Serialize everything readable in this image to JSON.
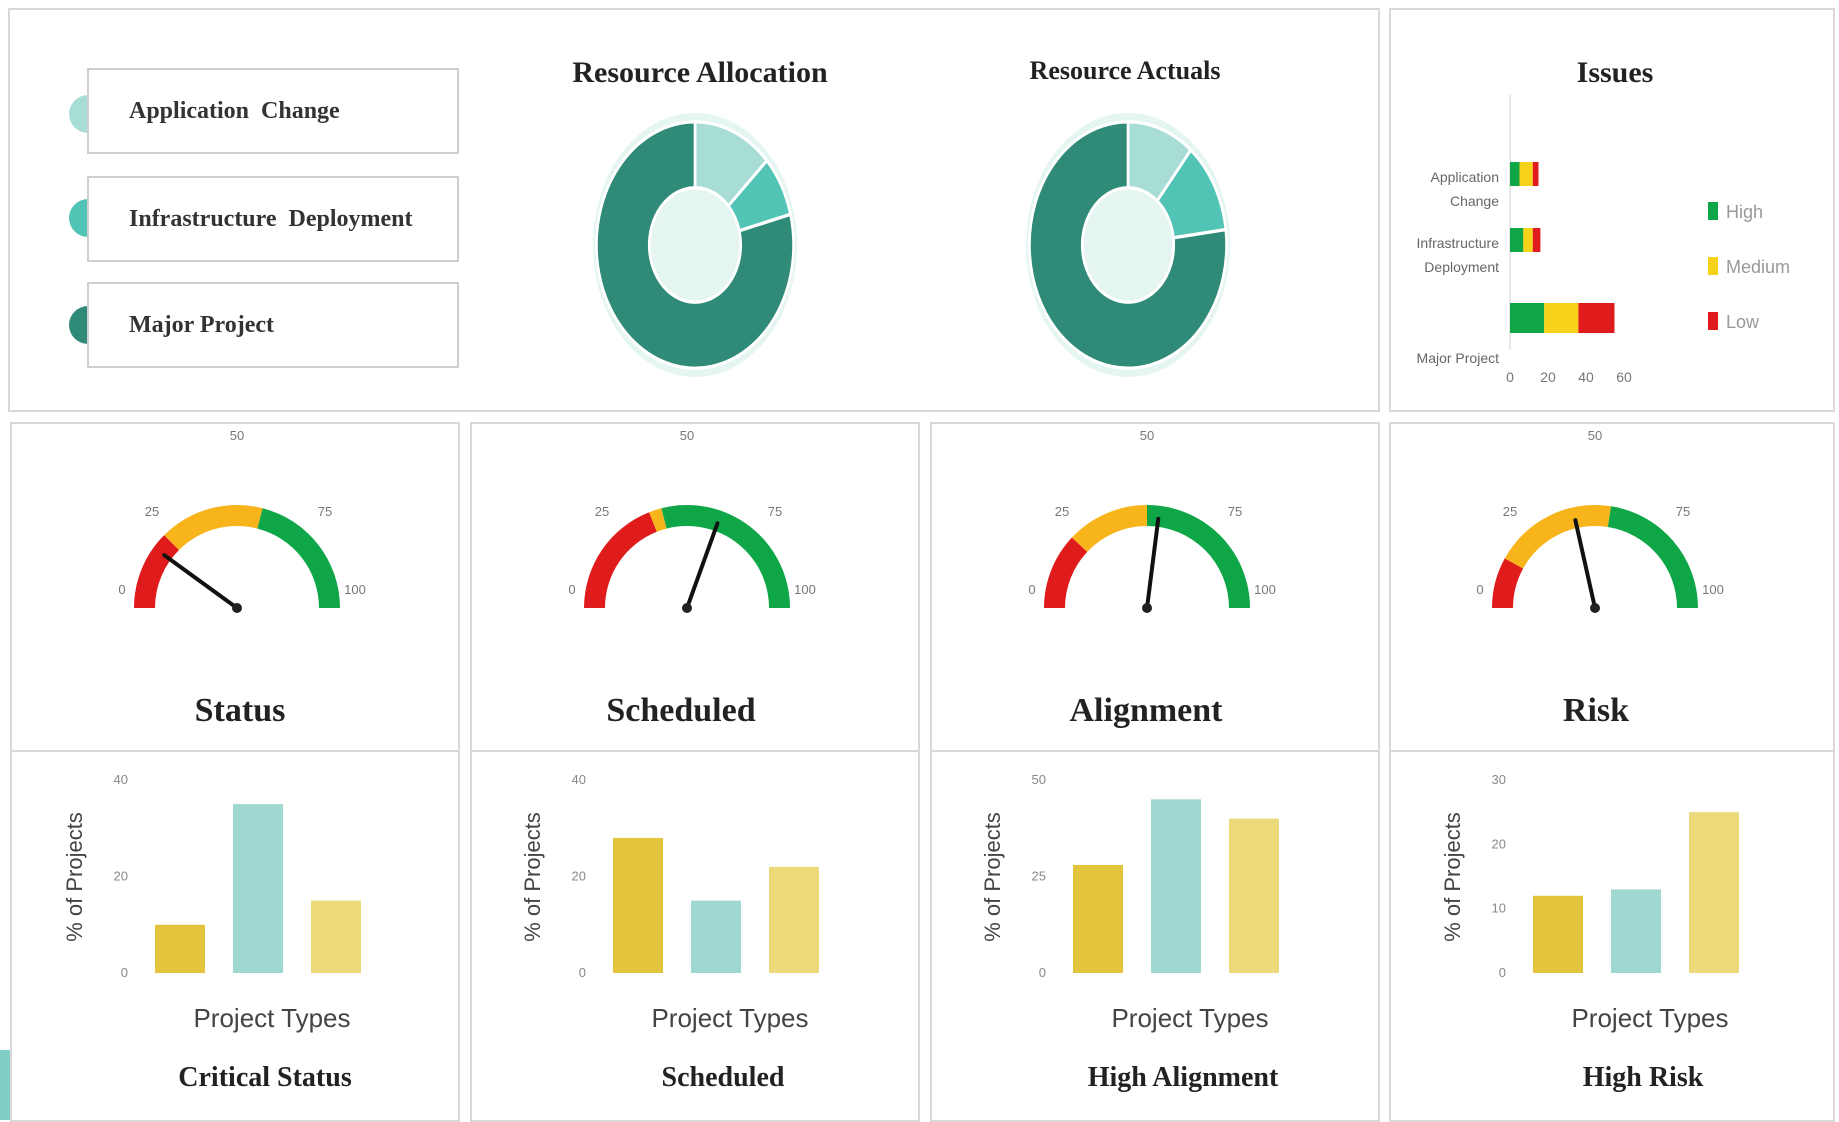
{
  "colors": {
    "light_teal": "#a8ddd6",
    "mid_teal": "#52c4b5",
    "dark_teal": "#2f8a78",
    "red": "#e01b1b",
    "orange": "#f7b51b",
    "green": "#0fa648",
    "bar_gold": "#e2c53c",
    "bar_teal": "#9fd8d1",
    "bar_pale_gold": "#ebd97a"
  },
  "legend": {
    "items": [
      {
        "label": "Application  Change",
        "color": "#a8ddd6"
      },
      {
        "label": "Infrastructure  Deployment",
        "color": "#52c4b5"
      },
      {
        "label": "Major Project",
        "color": "#2f8a78"
      }
    ]
  },
  "donuts": [
    {
      "title": "Resource Allocation",
      "slices": [
        {
          "name": "Application  Change",
          "value": 13
        },
        {
          "name": "Infrastructure  Deployment",
          "value": 8
        },
        {
          "name": "Major Project",
          "value": 79
        }
      ]
    },
    {
      "title": "Resource Actuals",
      "slices": [
        {
          "name": "Application  Change",
          "value": 11
        },
        {
          "name": "Infrastructure  Deployment",
          "value": 12
        },
        {
          "name": "Major Project",
          "value": 77
        }
      ]
    }
  ],
  "issues": {
    "title": "Issues",
    "categories": [
      "Application Change",
      "Infrastructure Deployment",
      "Major Project"
    ],
    "series": [
      {
        "name": "High",
        "values": [
          5,
          7,
          18
        ],
        "color": "#0fa648"
      },
      {
        "name": "Medium",
        "values": [
          7,
          5,
          18
        ],
        "color": "#f7d21b"
      },
      {
        "name": "Low",
        "values": [
          3,
          4,
          19
        ],
        "color": "#e01b1b"
      }
    ],
    "xticks": [
      "0",
      "20",
      "40",
      "60"
    ],
    "xlim": [
      0,
      60
    ]
  },
  "gauges": [
    {
      "title": "Status",
      "value": 20
    },
    {
      "title": "Scheduled",
      "value": 61
    },
    {
      "title": "Alignment",
      "value": 54
    },
    {
      "title": "Risk",
      "value": 43
    }
  ],
  "gauge_ticks": [
    "0",
    "25",
    "50",
    "75",
    "100"
  ],
  "bar_charts_common": {
    "xlabel": "Project Types",
    "ylabel": "% of Projects"
  },
  "chart_data": [
    {
      "type": "pie",
      "title": "Resource Allocation",
      "categories": [
        "Application  Change",
        "Infrastructure  Deployment",
        "Major Project"
      ],
      "values": [
        13,
        8,
        79
      ]
    },
    {
      "type": "pie",
      "title": "Resource Actuals",
      "categories": [
        "Application  Change",
        "Infrastructure  Deployment",
        "Major Project"
      ],
      "values": [
        11,
        12,
        77
      ]
    },
    {
      "type": "bar",
      "title": "Issues",
      "orientation": "horizontal",
      "stacked": true,
      "categories": [
        "Application Change",
        "Infrastructure Deployment",
        "Major Project"
      ],
      "series": [
        {
          "name": "High",
          "values": [
            5,
            7,
            18
          ]
        },
        {
          "name": "Medium",
          "values": [
            7,
            5,
            18
          ]
        },
        {
          "name": "Low",
          "values": [
            3,
            4,
            19
          ]
        }
      ],
      "xlim": [
        0,
        60
      ],
      "legend": "right"
    },
    {
      "type": "bar",
      "title": "Critical Status",
      "xlabel": "Project Types",
      "ylabel": "% of Projects",
      "values": [
        10,
        35,
        15
      ],
      "ylim": [
        0,
        40
      ],
      "yticks": [
        "0",
        "20",
        "40"
      ]
    },
    {
      "type": "bar",
      "title": "Scheduled",
      "xlabel": "Project Types",
      "ylabel": "% of Projects",
      "values": [
        28,
        15,
        22
      ],
      "ylim": [
        0,
        40
      ],
      "yticks": [
        "0",
        "20",
        "40"
      ]
    },
    {
      "type": "bar",
      "title": "High Alignment",
      "xlabel": "Project Types",
      "ylabel": "% of Projects",
      "values": [
        28,
        45,
        40
      ],
      "ylim": [
        0,
        50
      ],
      "yticks": [
        "0",
        "25",
        "50"
      ]
    },
    {
      "type": "bar",
      "title": "High Risk",
      "xlabel": "Project Types",
      "ylabel": "% of Projects",
      "values": [
        12,
        13,
        25
      ],
      "ylim": [
        0,
        30
      ],
      "yticks": [
        "0",
        "10",
        "20",
        "30"
      ]
    }
  ]
}
